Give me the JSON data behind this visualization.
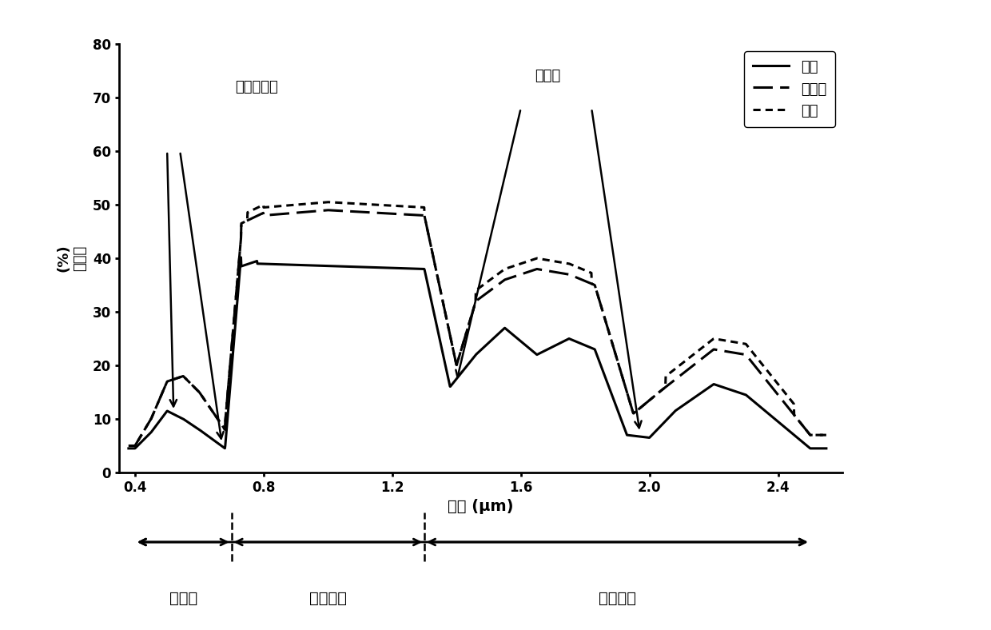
{
  "xlabel": "波段 (μm)",
  "ylabel": "(%)\n反射率",
  "xlim": [
    0.35,
    2.6
  ],
  "ylim": [
    0,
    80
  ],
  "xticks": [
    0.4,
    0.8,
    1.2,
    1.6,
    2.0,
    2.4
  ],
  "yticks": [
    0,
    10,
    20,
    30,
    40,
    50,
    60,
    70,
    80
  ],
  "legend_labels": [
    "玉米",
    "郁金香",
    "大豆"
  ],
  "annotation_chlorophyll": "叶绻素吸收",
  "annotation_water": "水吸收",
  "region_visible": "可见光",
  "region_nir": "近红外波",
  "region_swir": "红外短波",
  "visible_end": 0.7,
  "nir_end": 1.3,
  "plot_xmin": 0.4,
  "plot_xmax": 2.5
}
